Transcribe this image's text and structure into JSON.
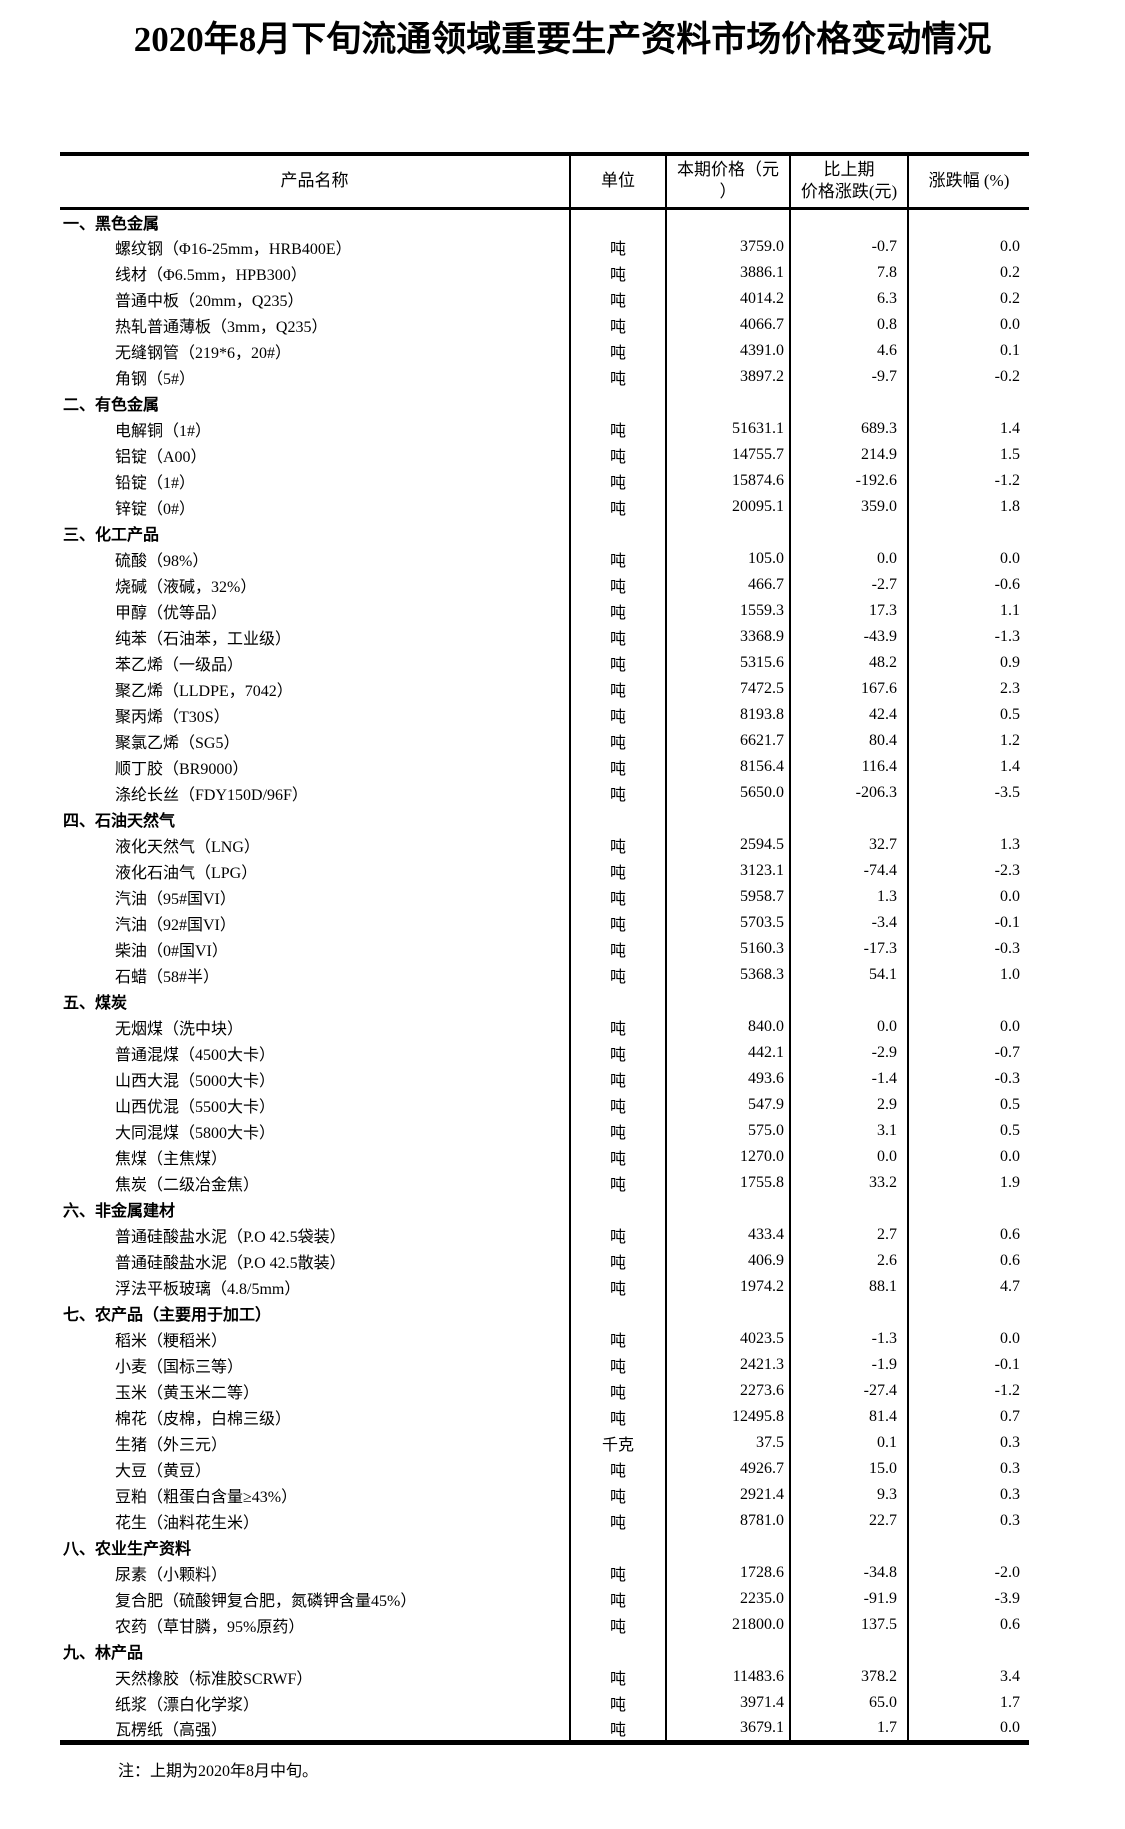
{
  "title": "2020年8月下旬流通领域重要生产资料市场价格变动情况",
  "note": "注：上期为2020年8月中旬。",
  "colors": {
    "text": "#000000",
    "border": "#000000",
    "background": "#ffffff"
  },
  "table": {
    "headers": {
      "product": "产品名称",
      "unit": "单位",
      "price_line1": "本期价格（元",
      "price_line2": "）",
      "change_line1": "比上期",
      "change_line2": "价格涨跌(元)",
      "pct": "涨跌幅 (%)"
    },
    "rows": [
      {
        "section": true,
        "name": "一、黑色金属"
      },
      {
        "name": "螺纹钢（Φ16-25mm，HRB400E）",
        "unit": "吨",
        "price": "3759.0",
        "change": "-0.7",
        "pct": "0.0"
      },
      {
        "name": "线材（Φ6.5mm，HPB300）",
        "unit": "吨",
        "price": "3886.1",
        "change": "7.8",
        "pct": "0.2"
      },
      {
        "name": "普通中板（20mm，Q235）",
        "unit": "吨",
        "price": "4014.2",
        "change": "6.3",
        "pct": "0.2"
      },
      {
        "name": "热轧普通薄板（3mm，Q235）",
        "unit": "吨",
        "price": "4066.7",
        "change": "0.8",
        "pct": "0.0"
      },
      {
        "name": "无缝钢管（219*6，20#）",
        "unit": "吨",
        "price": "4391.0",
        "change": "4.6",
        "pct": "0.1"
      },
      {
        "name": "角钢（5#）",
        "unit": "吨",
        "price": "3897.2",
        "change": "-9.7",
        "pct": "-0.2"
      },
      {
        "section": true,
        "name": "二、有色金属"
      },
      {
        "name": "电解铜（1#）",
        "unit": "吨",
        "price": "51631.1",
        "change": "689.3",
        "pct": "1.4"
      },
      {
        "name": "铝锭（A00）",
        "unit": "吨",
        "price": "14755.7",
        "change": "214.9",
        "pct": "1.5"
      },
      {
        "name": "铅锭（1#）",
        "unit": "吨",
        "price": "15874.6",
        "change": "-192.6",
        "pct": "-1.2"
      },
      {
        "name": "锌锭（0#）",
        "unit": "吨",
        "price": "20095.1",
        "change": "359.0",
        "pct": "1.8"
      },
      {
        "section": true,
        "name": "三、化工产品"
      },
      {
        "name": "硫酸（98%）",
        "unit": "吨",
        "price": "105.0",
        "change": "0.0",
        "pct": "0.0"
      },
      {
        "name": "烧碱（液碱，32%）",
        "unit": "吨",
        "price": "466.7",
        "change": "-2.7",
        "pct": "-0.6"
      },
      {
        "name": "甲醇（优等品）",
        "unit": "吨",
        "price": "1559.3",
        "change": "17.3",
        "pct": "1.1"
      },
      {
        "name": "纯苯（石油苯，工业级）",
        "unit": "吨",
        "price": "3368.9",
        "change": "-43.9",
        "pct": "-1.3"
      },
      {
        "name": "苯乙烯（一级品）",
        "unit": "吨",
        "price": "5315.6",
        "change": "48.2",
        "pct": "0.9"
      },
      {
        "name": "聚乙烯（LLDPE，7042）",
        "unit": "吨",
        "price": "7472.5",
        "change": "167.6",
        "pct": "2.3"
      },
      {
        "name": "聚丙烯（T30S）",
        "unit": "吨",
        "price": "8193.8",
        "change": "42.4",
        "pct": "0.5"
      },
      {
        "name": "聚氯乙烯（SG5）",
        "unit": "吨",
        "price": "6621.7",
        "change": "80.4",
        "pct": "1.2"
      },
      {
        "name": "顺丁胶（BR9000）",
        "unit": "吨",
        "price": "8156.4",
        "change": "116.4",
        "pct": "1.4"
      },
      {
        "name": "涤纶长丝（FDY150D/96F）",
        "unit": "吨",
        "price": "5650.0",
        "change": "-206.3",
        "pct": "-3.5"
      },
      {
        "section": true,
        "name": "四、石油天然气"
      },
      {
        "name": "液化天然气（LNG）",
        "unit": "吨",
        "price": "2594.5",
        "change": "32.7",
        "pct": "1.3"
      },
      {
        "name": "液化石油气（LPG）",
        "unit": "吨",
        "price": "3123.1",
        "change": "-74.4",
        "pct": "-2.3"
      },
      {
        "name": "汽油（95#国VI）",
        "unit": "吨",
        "price": "5958.7",
        "change": "1.3",
        "pct": "0.0"
      },
      {
        "name": "汽油（92#国VI）",
        "unit": "吨",
        "price": "5703.5",
        "change": "-3.4",
        "pct": "-0.1"
      },
      {
        "name": "柴油（0#国VI）",
        "unit": "吨",
        "price": "5160.3",
        "change": "-17.3",
        "pct": "-0.3"
      },
      {
        "name": "石蜡（58#半）",
        "unit": "吨",
        "price": "5368.3",
        "change": "54.1",
        "pct": "1.0"
      },
      {
        "section": true,
        "name": "五、煤炭"
      },
      {
        "name": "无烟煤（洗中块）",
        "unit": "吨",
        "price": "840.0",
        "change": "0.0",
        "pct": "0.0"
      },
      {
        "name": "普通混煤（4500大卡）",
        "unit": "吨",
        "price": "442.1",
        "change": "-2.9",
        "pct": "-0.7"
      },
      {
        "name": "山西大混（5000大卡）",
        "unit": "吨",
        "price": "493.6",
        "change": "-1.4",
        "pct": "-0.3"
      },
      {
        "name": "山西优混（5500大卡）",
        "unit": "吨",
        "price": "547.9",
        "change": "2.9",
        "pct": "0.5"
      },
      {
        "name": "大同混煤（5800大卡）",
        "unit": "吨",
        "price": "575.0",
        "change": "3.1",
        "pct": "0.5"
      },
      {
        "name": "焦煤（主焦煤）",
        "unit": "吨",
        "price": "1270.0",
        "change": "0.0",
        "pct": "0.0"
      },
      {
        "name": "焦炭（二级冶金焦）",
        "unit": "吨",
        "price": "1755.8",
        "change": "33.2",
        "pct": "1.9"
      },
      {
        "section": true,
        "name": "六、非金属建材"
      },
      {
        "name": "普通硅酸盐水泥（P.O 42.5袋装）",
        "unit": "吨",
        "price": "433.4",
        "change": "2.7",
        "pct": "0.6"
      },
      {
        "name": "普通硅酸盐水泥（P.O 42.5散装）",
        "unit": "吨",
        "price": "406.9",
        "change": "2.6",
        "pct": "0.6"
      },
      {
        "name": "浮法平板玻璃（4.8/5mm）",
        "unit": "吨",
        "price": "1974.2",
        "change": "88.1",
        "pct": "4.7"
      },
      {
        "section": true,
        "name": "七、农产品（主要用于加工）"
      },
      {
        "name": "稻米（粳稻米）",
        "unit": "吨",
        "price": "4023.5",
        "change": "-1.3",
        "pct": "0.0"
      },
      {
        "name": "小麦（国标三等）",
        "unit": "吨",
        "price": "2421.3",
        "change": "-1.9",
        "pct": "-0.1"
      },
      {
        "name": "玉米（黄玉米二等）",
        "unit": "吨",
        "price": "2273.6",
        "change": "-27.4",
        "pct": "-1.2"
      },
      {
        "name": "棉花（皮棉，白棉三级）",
        "unit": "吨",
        "price": "12495.8",
        "change": "81.4",
        "pct": "0.7"
      },
      {
        "name": "生猪（外三元）",
        "unit": "千克",
        "price": "37.5",
        "change": "0.1",
        "pct": "0.3"
      },
      {
        "name": "大豆（黄豆）",
        "unit": "吨",
        "price": "4926.7",
        "change": "15.0",
        "pct": "0.3"
      },
      {
        "name": "豆粕（粗蛋白含量≥43%）",
        "unit": "吨",
        "price": "2921.4",
        "change": "9.3",
        "pct": "0.3"
      },
      {
        "name": "花生（油料花生米）",
        "unit": "吨",
        "price": "8781.0",
        "change": "22.7",
        "pct": "0.3"
      },
      {
        "section": true,
        "name": "八、农业生产资料"
      },
      {
        "name": "尿素（小颗料）",
        "unit": "吨",
        "price": "1728.6",
        "change": "-34.8",
        "pct": "-2.0"
      },
      {
        "name": "复合肥（硫酸钾复合肥，氮磷钾含量45%）",
        "unit": "吨",
        "price": "2235.0",
        "change": "-91.9",
        "pct": "-3.9"
      },
      {
        "name": "农药（草甘膦，95%原药）",
        "unit": "吨",
        "price": "21800.0",
        "change": "137.5",
        "pct": "0.6"
      },
      {
        "section": true,
        "name": "九、林产品"
      },
      {
        "name": "天然橡胶（标准胶SCRWF）",
        "unit": "吨",
        "price": "11483.6",
        "change": "378.2",
        "pct": "3.4"
      },
      {
        "name": "纸浆（漂白化学浆）",
        "unit": "吨",
        "price": "3971.4",
        "change": "65.0",
        "pct": "1.7"
      },
      {
        "name": "瓦楞纸（高强）",
        "unit": "吨",
        "price": "3679.1",
        "change": "1.7",
        "pct": "0.0"
      }
    ]
  }
}
